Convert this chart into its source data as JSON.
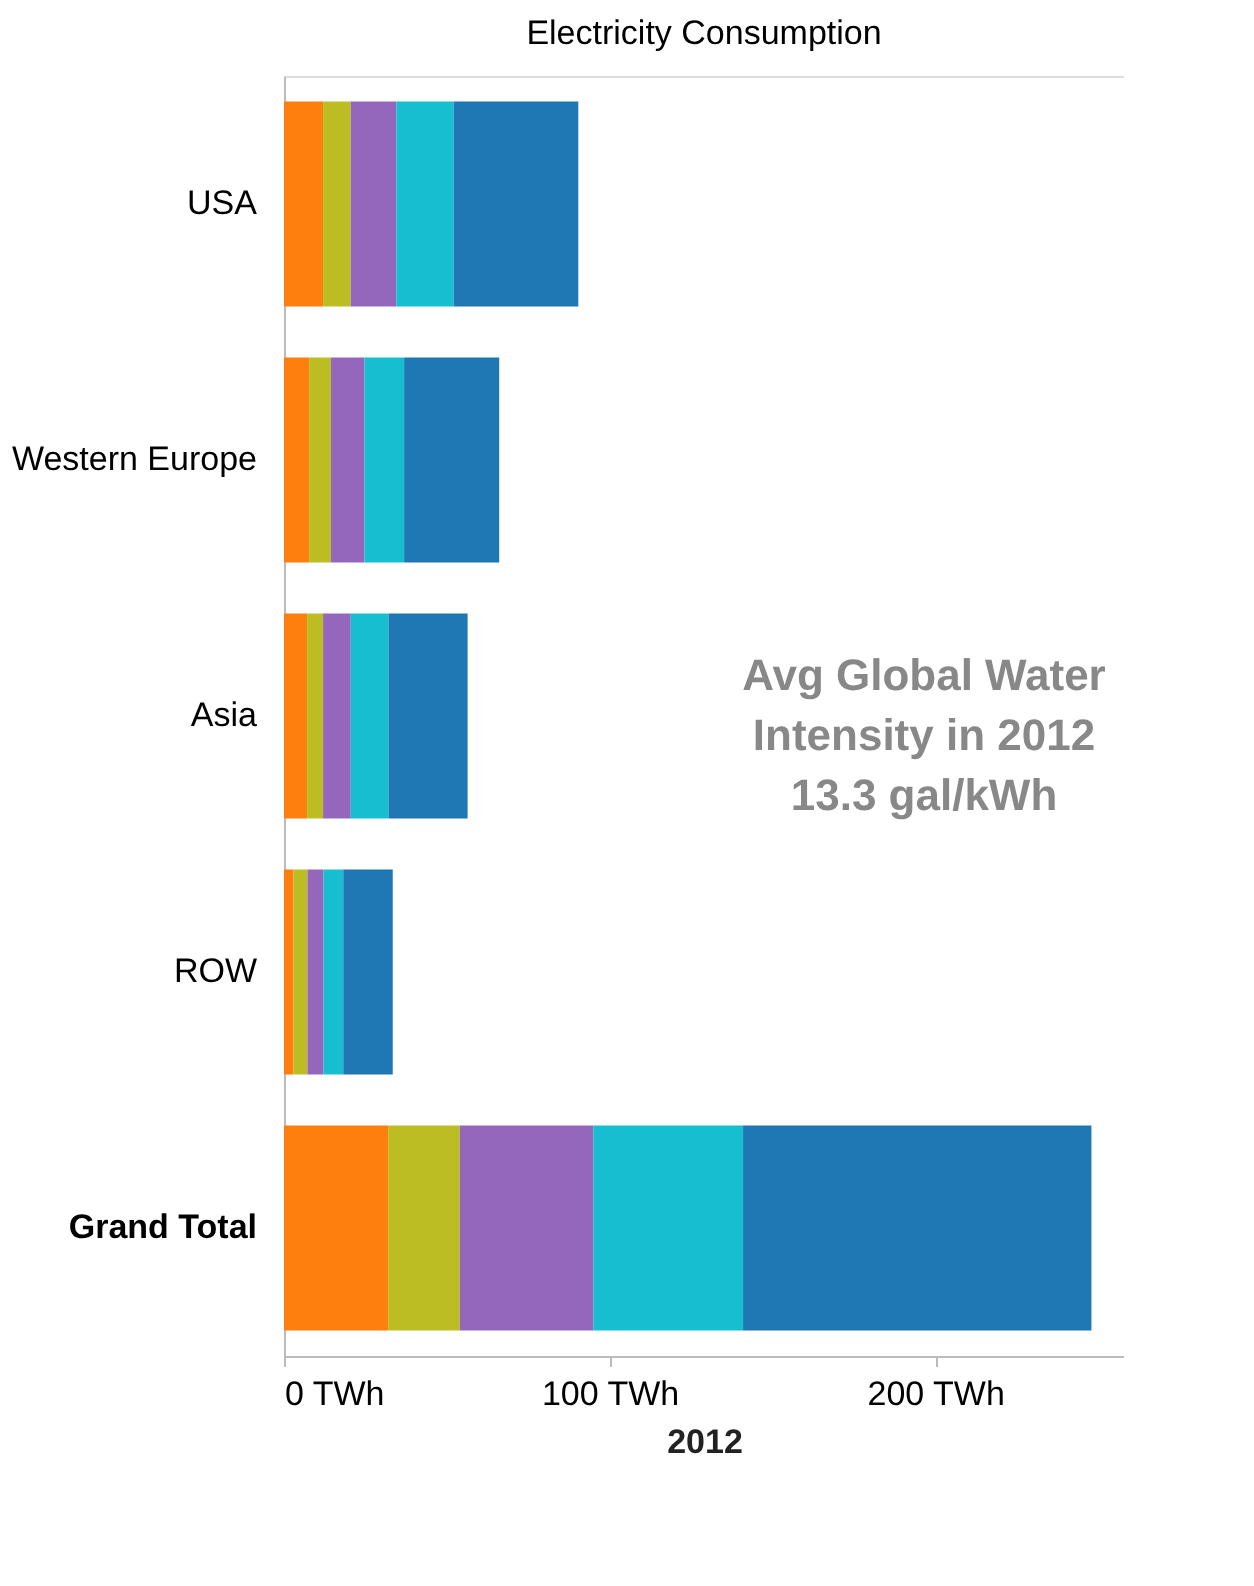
{
  "chart_data": {
    "type": "bar",
    "orientation": "horizontal",
    "stacked": true,
    "title": "Electricity Consumption",
    "xlabel": "2012",
    "categories": [
      "USA",
      "Western Europe",
      "Asia",
      "ROW",
      "Grand Total"
    ],
    "series": [
      {
        "color": "#ff7f0e",
        "values": [
          12,
          7.7,
          7.1,
          2.9,
          32
        ]
      },
      {
        "color": "#bcbd22",
        "values": [
          8.5,
          6.7,
          4.9,
          4.3,
          22
        ]
      },
      {
        "color": "#9467bd",
        "values": [
          14,
          10.3,
          8.5,
          4.9,
          41
        ]
      },
      {
        "color": "#17becf",
        "values": [
          17.6,
          12.2,
          11.6,
          6.1,
          46
        ]
      },
      {
        "color": "#1f77b4",
        "values": [
          38.3,
          29.2,
          24.3,
          15.2,
          107
        ]
      }
    ],
    "xlim": [
      0,
      258
    ],
    "xticks": [
      {
        "value": 0,
        "label": "0 TWh"
      },
      {
        "value": 100,
        "label": "100 TWh"
      },
      {
        "value": 200,
        "label": "200 TWh"
      }
    ],
    "annotations": [
      "Avg Global Water",
      "Intensity in 2012",
      "13.3 gal/kWh"
    ],
    "grid": false,
    "legend": false
  }
}
